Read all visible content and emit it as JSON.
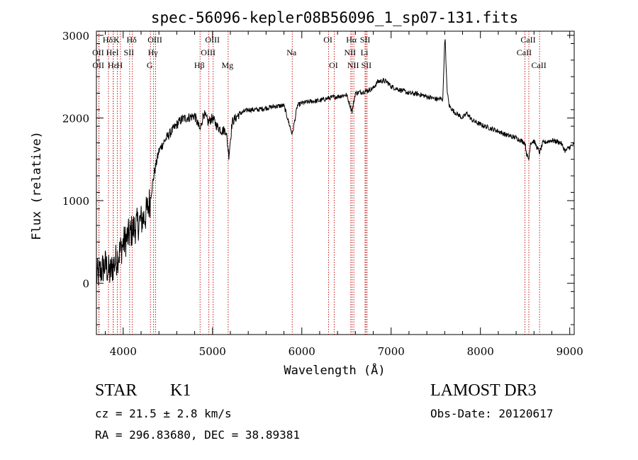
{
  "chart_data": {
    "type": "line",
    "title": "spec-56096-kepler08B56096_1_sp07-131.fits",
    "xlabel": "Wavelength (Å)",
    "ylabel": "Flux (relative)",
    "xlim": [
      3700,
      9050
    ],
    "ylim": [
      -620,
      3050
    ],
    "xticks": [
      4000,
      5000,
      6000,
      7000,
      8000,
      9000
    ],
    "yticks": [
      0,
      1000,
      2000,
      3000
    ],
    "series": [
      {
        "name": "flux",
        "color": "#000000",
        "x": [
          3700,
          3750,
          3800,
          3850,
          3900,
          3950,
          4000,
          4050,
          4100,
          4150,
          4200,
          4250,
          4300,
          4350,
          4400,
          4450,
          4500,
          4550,
          4600,
          4650,
          4700,
          4750,
          4800,
          4861,
          4900,
          4950,
          5000,
          5050,
          5100,
          5150,
          5183,
          5220,
          5300,
          5400,
          5500,
          5600,
          5700,
          5800,
          5893,
          5950,
          6000,
          6100,
          6200,
          6300,
          6400,
          6500,
          6563,
          6600,
          6700,
          6800,
          6850,
          6900,
          6950,
          7000,
          7100,
          7200,
          7300,
          7400,
          7500,
          7580,
          7595,
          7605,
          7615,
          7630,
          7650,
          7700,
          7800,
          7850,
          7900,
          8000,
          8100,
          8200,
          8300,
          8400,
          8498,
          8520,
          8542,
          8560,
          8600,
          8662,
          8700,
          8800,
          8900,
          8950,
          9000,
          9050
        ],
        "y": [
          80,
          150,
          220,
          120,
          240,
          350,
          480,
          560,
          640,
          700,
          760,
          820,
          1000,
          1350,
          1600,
          1700,
          1780,
          1850,
          1920,
          1980,
          2000,
          2010,
          2030,
          1850,
          2060,
          1950,
          2000,
          1900,
          1850,
          1850,
          1550,
          1950,
          2050,
          2100,
          2100,
          2120,
          2140,
          2150,
          1800,
          2150,
          2180,
          2200,
          2210,
          2240,
          2260,
          2280,
          2080,
          2300,
          2320,
          2360,
          2440,
          2450,
          2440,
          2380,
          2340,
          2300,
          2290,
          2260,
          2230,
          2230,
          2800,
          3000,
          2600,
          2300,
          2150,
          2080,
          2000,
          2060,
          1980,
          1920,
          1880,
          1840,
          1790,
          1760,
          1700,
          1550,
          1500,
          1700,
          1720,
          1580,
          1700,
          1730,
          1700,
          1600,
          1650,
          1680
        ]
      }
    ],
    "line_markers": [
      {
        "name": "Hδ",
        "wavelength": 3835,
        "row": 0
      },
      {
        "name": "OII",
        "wavelength": 3727,
        "row": 1
      },
      {
        "name": "OII",
        "wavelength": 3729,
        "row": 2
      },
      {
        "name": "Hε",
        "wavelength": 3889,
        "row": 2
      },
      {
        "name": "K",
        "wavelength": 3934,
        "row": 0
      },
      {
        "name": "HeI",
        "wavelength": 3888,
        "row": 1
      },
      {
        "name": "H",
        "wavelength": 3969,
        "row": 2
      },
      {
        "name": "Hδ",
        "wavelength": 4102,
        "row": 0
      },
      {
        "name": "SII",
        "wavelength": 4072,
        "row": 1
      },
      {
        "name": "OIII",
        "wavelength": 4363,
        "row": 0
      },
      {
        "name": "Hγ",
        "wavelength": 4340,
        "row": 1
      },
      {
        "name": "G",
        "wavelength": 4305,
        "row": 2
      },
      {
        "name": "Hβ",
        "wavelength": 4861,
        "row": 2
      },
      {
        "name": "OIII",
        "wavelength": 5007,
        "row": 0
      },
      {
        "name": "OIII",
        "wavelength": 4959,
        "row": 1
      },
      {
        "name": "Mg",
        "wavelength": 5175,
        "row": 2
      },
      {
        "name": "Na",
        "wavelength": 5893,
        "row": 1
      },
      {
        "name": "OI",
        "wavelength": 6300,
        "row": 0
      },
      {
        "name": "OI",
        "wavelength": 6363,
        "row": 2
      },
      {
        "name": "Hα",
        "wavelength": 6563,
        "row": 0
      },
      {
        "name": "SII",
        "wavelength": 6717,
        "row": 0
      },
      {
        "name": "NII",
        "wavelength": 6548,
        "row": 1
      },
      {
        "name": "Li",
        "wavelength": 6708,
        "row": 1
      },
      {
        "name": "NII",
        "wavelength": 6583,
        "row": 2
      },
      {
        "name": "SII",
        "wavelength": 6731,
        "row": 2
      },
      {
        "name": "CaII",
        "wavelength": 8542,
        "row": 0
      },
      {
        "name": "CaII",
        "wavelength": 8498,
        "row": 1
      },
      {
        "name": "CaII",
        "wavelength": 8662,
        "row": 2
      }
    ]
  },
  "info": {
    "object_class": "STAR",
    "subclass": "K1",
    "survey": "LAMOST DR3",
    "cz": "cz = 21.5 ± 2.8 km/s",
    "obs_date": "Obs-Date: 20120617",
    "coords": "RA = 296.83680, DEC =  38.89381"
  }
}
